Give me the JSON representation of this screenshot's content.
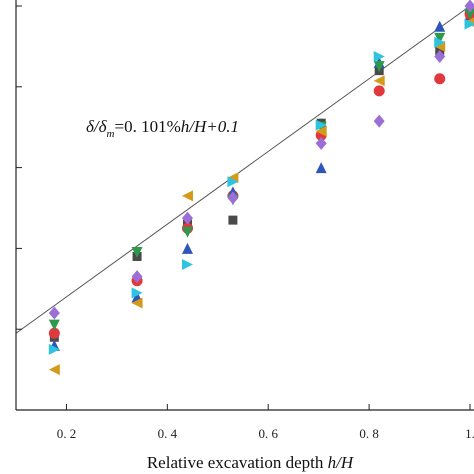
{
  "chart_data": {
    "type": "scatter",
    "title": "",
    "xlabel": "Relative excavation depth ",
    "xlabel_italic": "h/H",
    "ylabel": "",
    "xlim": [
      0.1,
      1.0
    ],
    "ylim": [
      0.0,
      1.0
    ],
    "x_ticks": [
      0.2,
      0.4,
      0.6,
      0.8,
      1.0
    ],
    "x_tick_labels": [
      "0. 2",
      "0. 4",
      "0. 6",
      "0. 8",
      "1."
    ],
    "y_ticks": [
      0.2,
      0.4,
      0.6,
      0.8,
      1.0
    ],
    "grid": false,
    "legend": "none",
    "annotation": {
      "p1": "δ/δ",
      "p2": "m",
      "p3": "=0. 101%",
      "p4": "h/H",
      "p5": "+0.1"
    },
    "fit_line": {
      "slope": 0.9,
      "intercept": 0.1,
      "x_range": [
        0.1,
        1.0
      ],
      "color": "#555555"
    },
    "series": [
      {
        "marker": "square",
        "color": "#4a4a4a",
        "points": [
          [
            0.176,
            0.18
          ],
          [
            0.34,
            0.38
          ],
          [
            0.44,
            0.46
          ],
          [
            0.53,
            0.47
          ],
          [
            0.705,
            0.71
          ],
          [
            0.82,
            0.84
          ],
          [
            0.94,
            0.89
          ],
          [
            1.0,
            0.97
          ]
        ]
      },
      {
        "marker": "circle",
        "color": "#e0383c",
        "points": [
          [
            0.176,
            0.19
          ],
          [
            0.34,
            0.32
          ],
          [
            0.44,
            0.45
          ],
          [
            0.53,
            0.53
          ],
          [
            0.705,
            0.68
          ],
          [
            0.82,
            0.79
          ],
          [
            0.94,
            0.82
          ],
          [
            1.0,
            0.98
          ]
        ]
      },
      {
        "marker": "triangle-up",
        "color": "#2f55b8",
        "points": [
          [
            0.176,
            0.16
          ],
          [
            0.34,
            0.28
          ],
          [
            0.44,
            0.4
          ],
          [
            0.53,
            0.54
          ],
          [
            0.705,
            0.6
          ],
          [
            0.82,
            0.86
          ],
          [
            0.94,
            0.95
          ],
          [
            1.0,
            1.0
          ]
        ]
      },
      {
        "marker": "triangle-down",
        "color": "#2c9a4a",
        "points": [
          [
            0.176,
            0.21
          ],
          [
            0.34,
            0.39
          ],
          [
            0.44,
            0.44
          ],
          [
            0.53,
            0.52
          ],
          [
            0.705,
            0.7
          ],
          [
            0.82,
            0.85
          ],
          [
            0.94,
            0.92
          ],
          [
            1.0,
            0.98
          ]
        ]
      },
      {
        "marker": "diamond",
        "color": "#9b6fd6",
        "points": [
          [
            0.176,
            0.24
          ],
          [
            0.34,
            0.33
          ],
          [
            0.44,
            0.475
          ],
          [
            0.53,
            0.525
          ],
          [
            0.705,
            0.66
          ],
          [
            0.82,
            0.715
          ],
          [
            0.94,
            0.875
          ],
          [
            1.0,
            1.0
          ]
        ]
      },
      {
        "marker": "triangle-left",
        "color": "#d49a1a",
        "points": [
          [
            0.176,
            0.1
          ],
          [
            0.34,
            0.265
          ],
          [
            0.44,
            0.53
          ],
          [
            0.53,
            0.575
          ],
          [
            0.705,
            0.69
          ],
          [
            0.82,
            0.815
          ],
          [
            0.94,
            0.9
          ],
          [
            1.0,
            0.96
          ]
        ]
      },
      {
        "marker": "triangle-right",
        "color": "#2ec4e0",
        "points": [
          [
            0.176,
            0.15
          ],
          [
            0.34,
            0.29
          ],
          [
            0.44,
            0.36
          ],
          [
            0.53,
            0.565
          ],
          [
            0.705,
            0.705
          ],
          [
            0.82,
            0.875
          ],
          [
            0.94,
            0.91
          ],
          [
            1.0,
            0.955
          ]
        ]
      }
    ]
  }
}
